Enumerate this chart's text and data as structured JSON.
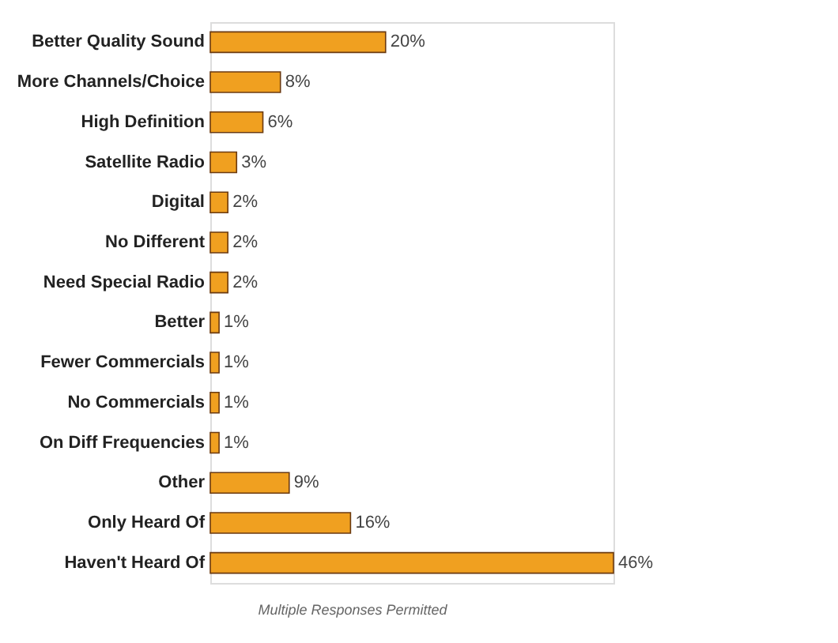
{
  "chart_data": {
    "type": "bar",
    "orientation": "horizontal",
    "categories": [
      "Better Quality Sound",
      "More Channels/Choice",
      "High Definition",
      "Satellite Radio",
      "Digital",
      "No Different",
      "Need Special Radio",
      "Better",
      "Fewer Commercials",
      "No Commercials",
      "On Diff Frequencies",
      "Other",
      "Only Heard Of",
      "Haven't Heard Of"
    ],
    "values": [
      20,
      8,
      6,
      3,
      2,
      2,
      2,
      1,
      1,
      1,
      1,
      9,
      16,
      46
    ],
    "value_labels": [
      "20%",
      "8%",
      "6%",
      "3%",
      "2%",
      "2%",
      "2%",
      "1%",
      "1%",
      "1%",
      "1%",
      "9%",
      "16%",
      "46%"
    ],
    "color": "#f0a020",
    "annotations": [
      "Multiple Responses Permitted"
    ]
  }
}
